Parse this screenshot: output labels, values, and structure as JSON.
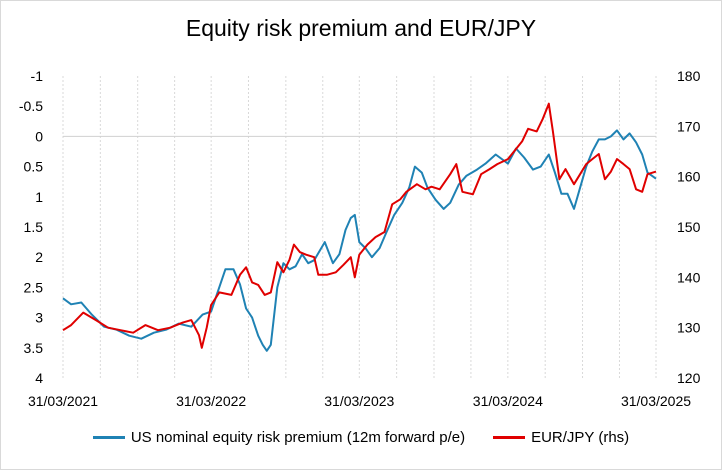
{
  "chart_data": {
    "type": "line",
    "title": "Equity risk premium and EUR/JPY",
    "grid": "vertical",
    "legend_position": "bottom",
    "x_axis": {
      "range": [
        "2021-03-31",
        "2025-03-31"
      ],
      "ticks": [
        "31/03/2021",
        "31/03/2022",
        "31/03/2023",
        "31/03/2024",
        "31/03/2025"
      ]
    },
    "y_left": {
      "inverted": true,
      "range": [
        -1,
        4
      ],
      "ticks": [
        "-1",
        "-0.5",
        "0",
        "0.5",
        "1",
        "1.5",
        "2",
        "2.5",
        "3",
        "3.5",
        "4"
      ]
    },
    "y_right": {
      "range": [
        120,
        180
      ],
      "ticks": [
        "180",
        "170",
        "160",
        "150",
        "140",
        "130",
        "120"
      ]
    },
    "series": [
      {
        "name": "US nominal equity risk premium (12m forward p/e)",
        "axis": "left",
        "color": "#1f82b4",
        "points": [
          [
            "2021-03-31",
            2.68
          ],
          [
            "2021-04-20",
            2.78
          ],
          [
            "2021-05-15",
            2.75
          ],
          [
            "2021-06-10",
            2.95
          ],
          [
            "2021-07-10",
            3.15
          ],
          [
            "2021-08-10",
            3.2
          ],
          [
            "2021-09-10",
            3.3
          ],
          [
            "2021-10-10",
            3.35
          ],
          [
            "2021-11-10",
            3.25
          ],
          [
            "2021-12-10",
            3.2
          ],
          [
            "2022-01-10",
            3.1
          ],
          [
            "2022-02-10",
            3.15
          ],
          [
            "2022-03-10",
            2.95
          ],
          [
            "2022-03-31",
            2.9
          ],
          [
            "2022-04-15",
            2.6
          ],
          [
            "2022-05-05",
            2.2
          ],
          [
            "2022-05-25",
            2.2
          ],
          [
            "2022-06-10",
            2.45
          ],
          [
            "2022-06-25",
            2.85
          ],
          [
            "2022-07-10",
            3.0
          ],
          [
            "2022-07-25",
            3.3
          ],
          [
            "2022-08-05",
            3.45
          ],
          [
            "2022-08-15",
            3.55
          ],
          [
            "2022-08-25",
            3.45
          ],
          [
            "2022-09-10",
            2.5
          ],
          [
            "2022-09-25",
            2.1
          ],
          [
            "2022-10-10",
            2.2
          ],
          [
            "2022-10-25",
            2.15
          ],
          [
            "2022-11-10",
            1.95
          ],
          [
            "2022-11-25",
            2.1
          ],
          [
            "2022-12-10",
            2.05
          ],
          [
            "2023-01-05",
            1.75
          ],
          [
            "2023-01-25",
            2.1
          ],
          [
            "2023-02-10",
            1.95
          ],
          [
            "2023-02-25",
            1.55
          ],
          [
            "2023-03-10",
            1.35
          ],
          [
            "2023-03-20",
            1.3
          ],
          [
            "2023-03-31",
            1.75
          ],
          [
            "2023-04-15",
            1.85
          ],
          [
            "2023-05-01",
            2.0
          ],
          [
            "2023-05-20",
            1.85
          ],
          [
            "2023-06-05",
            1.6
          ],
          [
            "2023-06-25",
            1.3
          ],
          [
            "2023-07-15",
            1.1
          ],
          [
            "2023-08-01",
            0.85
          ],
          [
            "2023-08-15",
            0.5
          ],
          [
            "2023-09-01",
            0.6
          ],
          [
            "2023-09-15",
            0.85
          ],
          [
            "2023-10-05",
            1.05
          ],
          [
            "2023-10-25",
            1.2
          ],
          [
            "2023-11-10",
            1.1
          ],
          [
            "2023-12-01",
            0.8
          ],
          [
            "2023-12-20",
            0.65
          ],
          [
            "2024-01-15",
            0.55
          ],
          [
            "2024-02-05",
            0.45
          ],
          [
            "2024-03-01",
            0.3
          ],
          [
            "2024-03-31",
            0.45
          ],
          [
            "2024-04-20",
            0.2
          ],
          [
            "2024-05-10",
            0.35
          ],
          [
            "2024-06-01",
            0.55
          ],
          [
            "2024-06-20",
            0.5
          ],
          [
            "2024-07-10",
            0.3
          ],
          [
            "2024-07-25",
            0.6
          ],
          [
            "2024-08-10",
            0.95
          ],
          [
            "2024-08-25",
            0.95
          ],
          [
            "2024-09-10",
            1.2
          ],
          [
            "2024-09-25",
            0.85
          ],
          [
            "2024-10-10",
            0.5
          ],
          [
            "2024-10-25",
            0.25
          ],
          [
            "2024-11-10",
            0.05
          ],
          [
            "2024-11-25",
            0.05
          ],
          [
            "2024-12-10",
            0.0
          ],
          [
            "2024-12-25",
            -0.1
          ],
          [
            "2025-01-10",
            0.05
          ],
          [
            "2025-01-25",
            -0.05
          ],
          [
            "2025-02-10",
            0.1
          ],
          [
            "2025-02-25",
            0.3
          ],
          [
            "2025-03-10",
            0.6
          ],
          [
            "2025-03-31",
            0.7
          ]
        ]
      },
      {
        "name": "EUR/JPY (rhs)",
        "axis": "right",
        "color": "#e00000",
        "points": [
          [
            "2021-03-31",
            129.5
          ],
          [
            "2021-04-20",
            130.5
          ],
          [
            "2021-05-20",
            133.0
          ],
          [
            "2021-06-20",
            131.5
          ],
          [
            "2021-07-20",
            130.0
          ],
          [
            "2021-08-20",
            129.5
          ],
          [
            "2021-09-20",
            129.0
          ],
          [
            "2021-10-20",
            130.5
          ],
          [
            "2021-11-20",
            129.5
          ],
          [
            "2021-12-20",
            130.0
          ],
          [
            "2022-01-20",
            131.0
          ],
          [
            "2022-02-10",
            131.5
          ],
          [
            "2022-03-01",
            128.5
          ],
          [
            "2022-03-08",
            126.0
          ],
          [
            "2022-03-20",
            130.0
          ],
          [
            "2022-03-31",
            134.5
          ],
          [
            "2022-04-20",
            137.0
          ],
          [
            "2022-05-20",
            136.5
          ],
          [
            "2022-06-10",
            140.5
          ],
          [
            "2022-06-25",
            142.0
          ],
          [
            "2022-07-10",
            139.0
          ],
          [
            "2022-07-25",
            138.5
          ],
          [
            "2022-08-10",
            136.5
          ],
          [
            "2022-08-25",
            137.0
          ],
          [
            "2022-09-10",
            143.0
          ],
          [
            "2022-09-25",
            141.0
          ],
          [
            "2022-10-10",
            143.5
          ],
          [
            "2022-10-21",
            146.5
          ],
          [
            "2022-11-05",
            145.0
          ],
          [
            "2022-11-20",
            144.5
          ],
          [
            "2022-12-10",
            144.0
          ],
          [
            "2022-12-20",
            140.5
          ],
          [
            "2023-01-10",
            140.5
          ],
          [
            "2023-02-01",
            141.0
          ],
          [
            "2023-02-20",
            142.5
          ],
          [
            "2023-03-10",
            144.0
          ],
          [
            "2023-03-20",
            140.0
          ],
          [
            "2023-03-31",
            144.5
          ],
          [
            "2023-04-20",
            146.5
          ],
          [
            "2023-05-10",
            148.0
          ],
          [
            "2023-06-01",
            149.0
          ],
          [
            "2023-06-20",
            154.5
          ],
          [
            "2023-07-10",
            155.5
          ],
          [
            "2023-07-25",
            157.0
          ],
          [
            "2023-08-20",
            158.5
          ],
          [
            "2023-09-10",
            157.5
          ],
          [
            "2023-09-25",
            158.0
          ],
          [
            "2023-10-15",
            157.5
          ],
          [
            "2023-11-10",
            160.5
          ],
          [
            "2023-11-25",
            162.5
          ],
          [
            "2023-12-10",
            157.0
          ],
          [
            "2024-01-05",
            156.5
          ],
          [
            "2024-01-25",
            160.5
          ],
          [
            "2024-02-15",
            161.5
          ],
          [
            "2024-03-05",
            162.5
          ],
          [
            "2024-03-31",
            163.5
          ],
          [
            "2024-04-20",
            165.5
          ],
          [
            "2024-05-05",
            167.0
          ],
          [
            "2024-05-20",
            169.5
          ],
          [
            "2024-06-10",
            169.0
          ],
          [
            "2024-06-25",
            171.5
          ],
          [
            "2024-07-10",
            174.5
          ],
          [
            "2024-07-20",
            169.0
          ],
          [
            "2024-08-05",
            159.5
          ],
          [
            "2024-08-20",
            161.5
          ],
          [
            "2024-09-10",
            158.5
          ],
          [
            "2024-09-25",
            160.5
          ],
          [
            "2024-10-10",
            162.5
          ],
          [
            "2024-10-25",
            163.5
          ],
          [
            "2024-11-10",
            164.5
          ],
          [
            "2024-11-25",
            159.5
          ],
          [
            "2024-12-10",
            161.0
          ],
          [
            "2024-12-25",
            163.5
          ],
          [
            "2025-01-10",
            162.5
          ],
          [
            "2025-01-25",
            161.5
          ],
          [
            "2025-02-10",
            157.5
          ],
          [
            "2025-02-25",
            157.0
          ],
          [
            "2025-03-10",
            160.5
          ],
          [
            "2025-03-31",
            161.0
          ]
        ]
      }
    ]
  }
}
